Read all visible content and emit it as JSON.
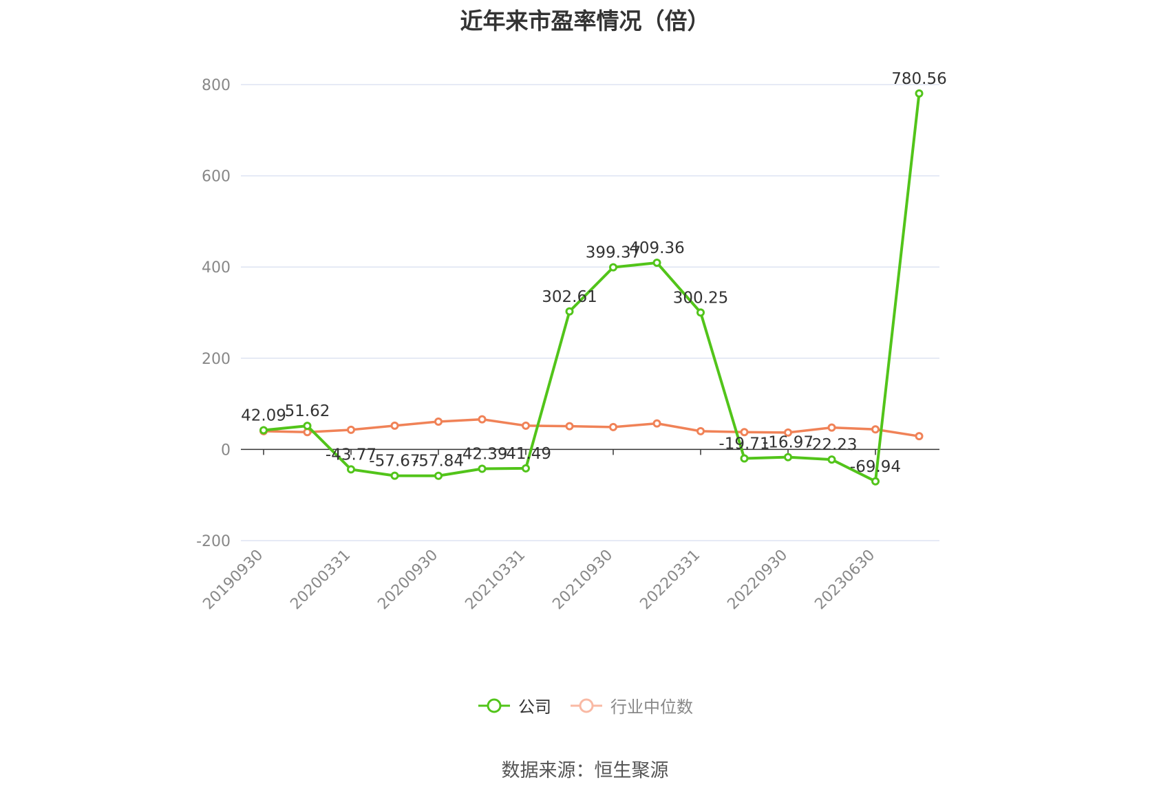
{
  "title": "近年来市盈率情况（倍）",
  "source": "数据来源：恒生聚源",
  "colors": {
    "company": "#52c41a",
    "industry": "#f08257",
    "industry_legend": "#f9b9a4",
    "grid": "#dde3f2",
    "axis": "#333333",
    "tick_text": "#888888",
    "label_text": "#333333"
  },
  "chart_data": {
    "type": "line",
    "title": "近年来市盈率情况（倍）",
    "xlabel": "",
    "ylabel": "",
    "ylim": [
      -200,
      800
    ],
    "yticks": [
      -200,
      0,
      200,
      400,
      600,
      800
    ],
    "grid": true,
    "legend_position": "bottom",
    "x_tick_labels": [
      "20190930",
      "20200331",
      "20200930",
      "20210331",
      "20210930",
      "20220331",
      "20220930",
      "20230630"
    ],
    "x_tick_indices": [
      0,
      2,
      4,
      6,
      8,
      10,
      12,
      14
    ],
    "point_count": 16,
    "series": [
      {
        "name": "公司",
        "color": "#52c41a",
        "values": [
          42.09,
          51.62,
          -43.77,
          -57.67,
          -57.84,
          -42.39,
          -41.49,
          302.61,
          399.37,
          409.36,
          300.25,
          -19.71,
          -16.97,
          -22.23,
          -69.94,
          780.56
        ],
        "labels": [
          "42.09",
          "51.62",
          "-43.77",
          "-57.67",
          "-57.84",
          "-42.39",
          "-41.49",
          "302.61",
          "399.37",
          "409.36",
          "300.25",
          "-19.71",
          "-16.97",
          "-22.23",
          "-69.94",
          "780.56"
        ]
      },
      {
        "name": "行业中位数",
        "color": "#f08257",
        "values": [
          40,
          38,
          43,
          52,
          61,
          66,
          52,
          51,
          49,
          57,
          40,
          38,
          37,
          48,
          44,
          29
        ]
      }
    ]
  }
}
